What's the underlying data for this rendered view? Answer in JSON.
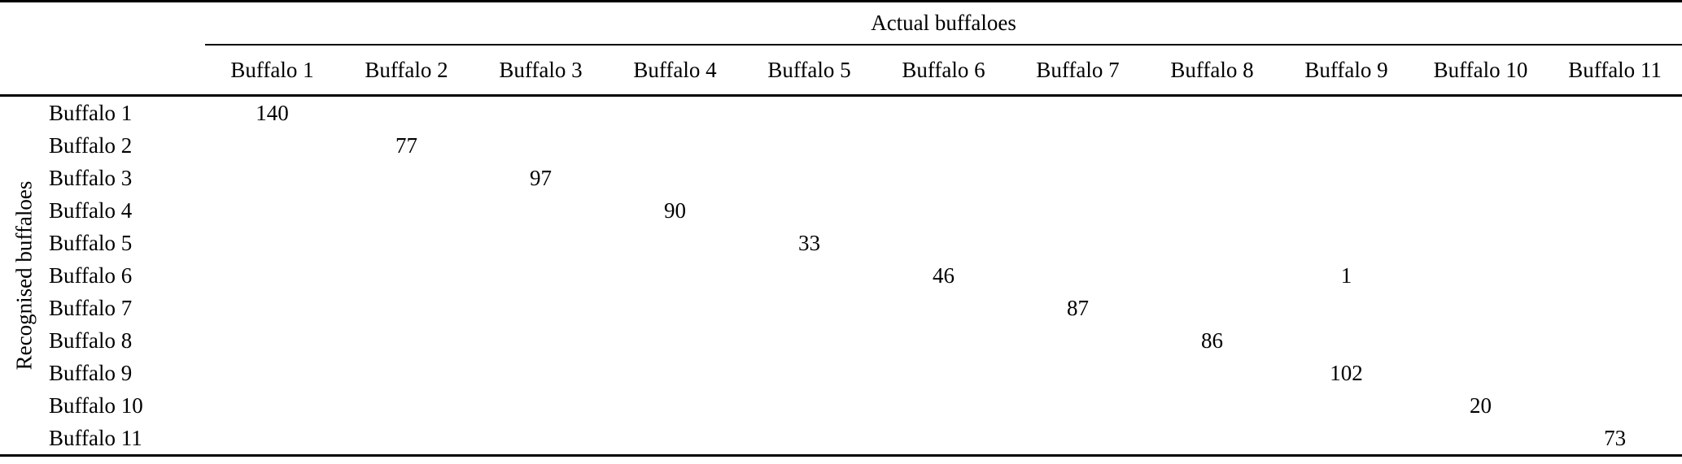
{
  "page": {
    "background_color": "#ffffff",
    "text_color": "#000000"
  },
  "table": {
    "column_group_title": "Actual buffaloes",
    "row_group_title": "Recognised buffaloes",
    "column_headers": [
      "Buffalo 1",
      "Buffalo 2",
      "Buffalo 3",
      "Buffalo 4",
      "Buffalo 5",
      "Buffalo 6",
      "Buffalo 7",
      "Buffalo 8",
      "Buffalo 9",
      "Buffalo 10",
      "Buffalo 11"
    ],
    "row_headers": [
      "Buffalo 1",
      "Buffalo 2",
      "Buffalo 3",
      "Buffalo 4",
      "Buffalo 5",
      "Buffalo 6",
      "Buffalo 7",
      "Buffalo 8",
      "Buffalo 9",
      "Buffalo 10",
      "Buffalo 11"
    ],
    "cells": [
      [
        "140",
        "",
        "",
        "",
        "",
        "",
        "",
        "",
        "",
        "",
        ""
      ],
      [
        "",
        "77",
        "",
        "",
        "",
        "",
        "",
        "",
        "",
        "",
        ""
      ],
      [
        "",
        "",
        "97",
        "",
        "",
        "",
        "",
        "",
        "",
        "",
        ""
      ],
      [
        "",
        "",
        "",
        "90",
        "",
        "",
        "",
        "",
        "",
        "",
        ""
      ],
      [
        "",
        "",
        "",
        "",
        "33",
        "",
        "",
        "",
        "",
        "",
        ""
      ],
      [
        "",
        "",
        "",
        "",
        "",
        "46",
        "",
        "",
        "1",
        "",
        ""
      ],
      [
        "",
        "",
        "",
        "",
        "",
        "",
        "87",
        "",
        "",
        "",
        ""
      ],
      [
        "",
        "",
        "",
        "",
        "",
        "",
        "",
        "86",
        "",
        "",
        ""
      ],
      [
        "",
        "",
        "",
        "",
        "",
        "",
        "",
        "",
        "102",
        "",
        ""
      ],
      [
        "",
        "",
        "",
        "",
        "",
        "",
        "",
        "",
        "",
        "20",
        ""
      ],
      [
        "",
        "",
        "",
        "",
        "",
        "",
        "",
        "",
        "",
        "",
        "73"
      ]
    ]
  }
}
